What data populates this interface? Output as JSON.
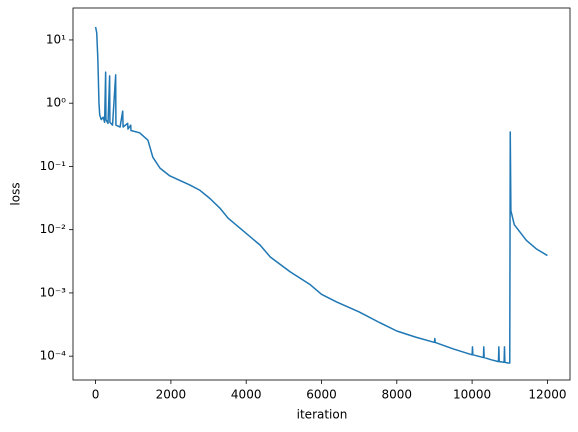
{
  "chart_data": {
    "type": "line",
    "x_label": "iteration",
    "y_label": "loss",
    "log_y": true,
    "xlim": [
      -600,
      12600
    ],
    "ylim": [
      4.2e-05,
      32
    ],
    "xticks": [
      0,
      2000,
      4000,
      6000,
      8000,
      10000,
      12000
    ],
    "yticks": [
      {
        "value": 0.0001,
        "label": "10⁻⁴"
      },
      {
        "value": 0.001,
        "label": "10⁻³"
      },
      {
        "value": 0.01,
        "label": "10⁻²"
      },
      {
        "value": 0.1,
        "label": "10⁻¹"
      },
      {
        "value": 1,
        "label": "10⁰"
      },
      {
        "value": 10,
        "label": "10¹"
      }
    ],
    "color": "#1f77b4",
    "x": [
      0,
      30,
      60,
      90,
      110,
      150,
      200,
      240,
      267,
      275,
      330,
      373,
      380,
      450,
      533,
      540,
      650,
      720,
      730,
      853,
      860,
      933,
      940,
      1170,
      1390,
      1520,
      1710,
      1970,
      2500,
      2770,
      3040,
      3300,
      3520,
      3840,
      4370,
      4640,
      5170,
      5700,
      6000,
      6400,
      7000,
      7500,
      8000,
      8500,
      9000,
      9010,
      9020,
      9500,
      10000,
      10010,
      10020,
      10300,
      10310,
      10320,
      10500,
      10700,
      10710,
      10720,
      10850,
      10860,
      10870,
      10950,
      11000,
      11013,
      11030,
      11120,
      11440,
      11700,
      12000
    ],
    "values": [
      16,
      13,
      5,
      1.0,
      0.65,
      0.55,
      0.6,
      0.5,
      3.1,
      0.55,
      0.48,
      2.7,
      0.5,
      0.45,
      2.8,
      0.45,
      0.42,
      0.75,
      0.42,
      0.48,
      0.39,
      0.45,
      0.37,
      0.34,
      0.26,
      0.14,
      0.094,
      0.071,
      0.051,
      0.042,
      0.031,
      0.022,
      0.0152,
      0.0105,
      0.0057,
      0.0037,
      0.00215,
      0.00135,
      0.00095,
      0.00072,
      0.0005,
      0.00035,
      0.00025,
      0.0002,
      0.000165,
      0.00019,
      0.000165,
      0.00013,
      0.000105,
      0.00014,
      0.000105,
      9.5e-05,
      0.00014,
      9.5e-05,
      8.8e-05,
      8.2e-05,
      0.00014,
      8.2e-05,
      8e-05,
      0.00014,
      8e-05,
      7.8e-05,
      7.8e-05,
      0.35,
      0.02,
      0.012,
      0.0068,
      0.005,
      0.0039
    ]
  }
}
